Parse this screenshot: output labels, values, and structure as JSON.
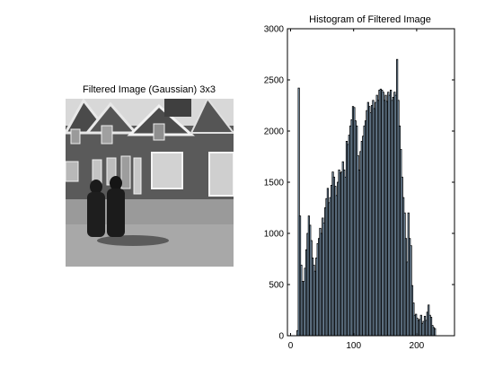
{
  "left_panel": {
    "title": "Filtered Image (Gaussian) 3x3",
    "image_description_icon": "street-photo-grayscale"
  },
  "colors": {
    "bar_fill": "#a6c8e6",
    "bar_edge": "#000000",
    "axes": "#000000",
    "background": "#ffffff"
  },
  "chart_data": {
    "type": "bar",
    "title": "Histogram of Filtered Image",
    "xlabel": "",
    "ylabel": "",
    "xlim": [
      -5,
      260
    ],
    "ylim": [
      0,
      3000
    ],
    "xticks": [
      0,
      100,
      200
    ],
    "yticks": [
      0,
      500,
      1000,
      1500,
      2000,
      2500,
      3000
    ],
    "grid": false,
    "bin_width": 2,
    "bins": [
      [
        10,
        50
      ],
      [
        12,
        2420
      ],
      [
        14,
        1170
      ],
      [
        16,
        690
      ],
      [
        18,
        530
      ],
      [
        20,
        530
      ],
      [
        22,
        660
      ],
      [
        24,
        840
      ],
      [
        26,
        1000
      ],
      [
        28,
        1170
      ],
      [
        30,
        1080
      ],
      [
        32,
        930
      ],
      [
        34,
        760
      ],
      [
        36,
        690
      ],
      [
        38,
        630
      ],
      [
        40,
        760
      ],
      [
        42,
        900
      ],
      [
        44,
        950
      ],
      [
        46,
        1050
      ],
      [
        48,
        1000
      ],
      [
        50,
        1150
      ],
      [
        52,
        1100
      ],
      [
        54,
        1250
      ],
      [
        56,
        1340
      ],
      [
        58,
        1440
      ],
      [
        60,
        1300
      ],
      [
        62,
        1350
      ],
      [
        64,
        1470
      ],
      [
        66,
        1600
      ],
      [
        68,
        1550
      ],
      [
        70,
        1460
      ],
      [
        72,
        1370
      ],
      [
        74,
        1500
      ],
      [
        76,
        1620
      ],
      [
        78,
        1590
      ],
      [
        80,
        1600
      ],
      [
        82,
        1700
      ],
      [
        84,
        1620
      ],
      [
        86,
        1550
      ],
      [
        88,
        1900
      ],
      [
        90,
        1870
      ],
      [
        92,
        1960
      ],
      [
        94,
        2050
      ],
      [
        96,
        2110
      ],
      [
        98,
        2240
      ],
      [
        100,
        2230
      ],
      [
        102,
        2100
      ],
      [
        104,
        2050
      ],
      [
        106,
        1760
      ],
      [
        108,
        1620
      ],
      [
        110,
        1800
      ],
      [
        112,
        1900
      ],
      [
        114,
        1950
      ],
      [
        116,
        2050
      ],
      [
        118,
        2100
      ],
      [
        120,
        2200
      ],
      [
        122,
        2280
      ],
      [
        124,
        2240
      ],
      [
        126,
        2180
      ],
      [
        128,
        2250
      ],
      [
        130,
        2300
      ],
      [
        132,
        2220
      ],
      [
        134,
        2280
      ],
      [
        136,
        2350
      ],
      [
        138,
        2300
      ],
      [
        140,
        2400
      ],
      [
        142,
        2410
      ],
      [
        144,
        2400
      ],
      [
        146,
        2380
      ],
      [
        148,
        2300
      ],
      [
        150,
        2350
      ],
      [
        152,
        2290
      ],
      [
        154,
        2380
      ],
      [
        156,
        2350
      ],
      [
        158,
        2400
      ],
      [
        160,
        2300
      ],
      [
        162,
        2330
      ],
      [
        164,
        2380
      ],
      [
        166,
        2350
      ],
      [
        168,
        2700
      ],
      [
        170,
        2300
      ],
      [
        172,
        2050
      ],
      [
        174,
        1820
      ],
      [
        176,
        1550
      ],
      [
        178,
        1350
      ],
      [
        180,
        1200
      ],
      [
        182,
        950
      ],
      [
        184,
        720
      ],
      [
        186,
        1200
      ],
      [
        188,
        950
      ],
      [
        190,
        880
      ],
      [
        192,
        490
      ],
      [
        194,
        320
      ],
      [
        196,
        200
      ],
      [
        198,
        210
      ],
      [
        200,
        170
      ],
      [
        202,
        150
      ],
      [
        204,
        160
      ],
      [
        206,
        200
      ],
      [
        208,
        120
      ],
      [
        210,
        140
      ],
      [
        212,
        190
      ],
      [
        214,
        150
      ],
      [
        216,
        230
      ],
      [
        218,
        300
      ],
      [
        220,
        200
      ],
      [
        222,
        180
      ],
      [
        224,
        100
      ],
      [
        226,
        80
      ],
      [
        228,
        70
      ]
    ]
  }
}
